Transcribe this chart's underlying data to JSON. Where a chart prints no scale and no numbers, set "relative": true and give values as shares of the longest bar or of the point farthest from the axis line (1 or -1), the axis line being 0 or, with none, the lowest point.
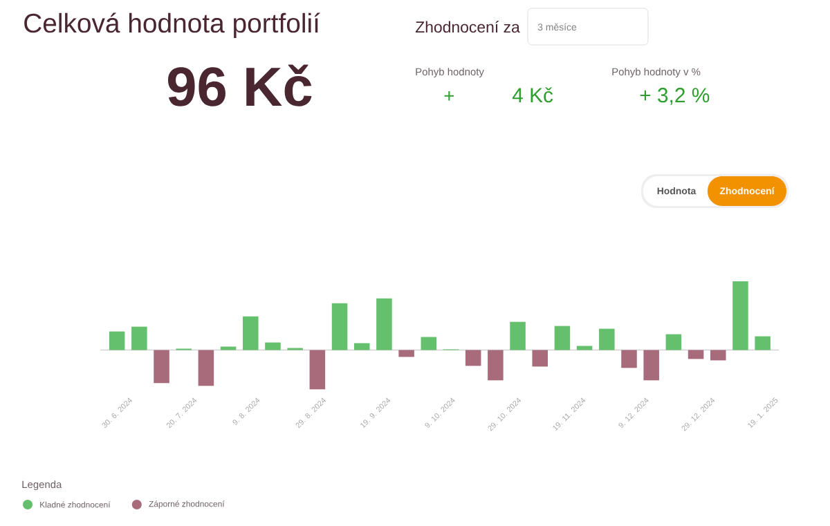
{
  "chart_data": {
    "type": "bar",
    "title": "Celková hodnota portfolií",
    "annotations": [
      "96 Kč",
      "Zhodnocení za",
      "3 měsíce",
      "Pohyb hodnoty",
      "+",
      "4 Kč",
      "Pohyb hodnoty v %",
      "+ 3,2 %",
      "Hodnota",
      "Zhodnocení"
    ],
    "relative": true,
    "x": [
      "2024-06-30",
      "2024-07-07",
      "2024-07-14",
      "2024-07-21",
      "2024-07-28",
      "2024-08-04",
      "2024-08-11",
      "2024-08-18",
      "2024-08-25",
      "2024-09-01",
      "2024-09-08",
      "2024-09-15",
      "2024-09-22",
      "2024-09-29",
      "2024-10-06",
      "2024-10-13",
      "2024-10-20",
      "2024-10-27",
      "2024-11-03",
      "2024-11-10",
      "2024-11-17",
      "2024-11-24",
      "2024-12-01",
      "2024-12-08",
      "2024-12-15",
      "2024-12-22",
      "2024-12-29",
      "2025-01-05",
      "2025-01-12",
      "2025-01-19"
    ],
    "xlim": [
      "2024-06-24T18:00",
      "2025-01-24T02:00"
    ],
    "xticks": [
      {
        "value": "2024-06-30T00:00",
        "label": "30. 6. 2024"
      },
      {
        "value": "2024-07-20T07:12",
        "label": "20. 7. 2024"
      },
      {
        "value": "2024-08-09T14:24",
        "label": "9. 8. 2024"
      },
      {
        "value": "2024-08-29T21:36",
        "label": "29. 8. 2024"
      },
      {
        "value": "2024-09-19T04:48",
        "label": "19. 9. 2024"
      },
      {
        "value": "2024-10-09T12:00",
        "label": "9. 10. 2024"
      },
      {
        "value": "2024-10-29T19:12",
        "label": "29. 10. 2024"
      },
      {
        "value": "2024-11-19T02:24",
        "label": "19. 11. 2024"
      },
      {
        "value": "2024-12-09T09:36",
        "label": "9. 12. 2024"
      },
      {
        "value": "2024-12-29T16:48",
        "label": "29. 12. 2024"
      },
      {
        "value": "2025-01-19T00:00",
        "label": "19. 1. 2025"
      }
    ],
    "series": [
      {
        "name": "Kladné zhodnocení",
        "color": "#65c06e",
        "values": [
          0.27,
          0.34,
          null,
          0.02,
          null,
          0.05,
          0.49,
          0.11,
          0.03,
          null,
          0.68,
          0.1,
          0.75,
          null,
          0.19,
          0.01,
          null,
          null,
          0.41,
          null,
          0.35,
          0.06,
          0.31,
          null,
          null,
          0.23,
          null,
          null,
          1.0,
          0.2
        ]
      },
      {
        "name": "Záporné zhodnocení",
        "color": "#a76b7b",
        "values": [
          null,
          null,
          -0.48,
          null,
          -0.52,
          null,
          null,
          null,
          null,
          -0.57,
          null,
          null,
          null,
          -0.1,
          null,
          null,
          -0.23,
          -0.44,
          null,
          -0.24,
          null,
          null,
          null,
          -0.26,
          -0.44,
          null,
          -0.13,
          -0.15,
          null,
          null
        ]
      }
    ],
    "legend": "bottom left",
    "legend_title": "Legenda"
  }
}
